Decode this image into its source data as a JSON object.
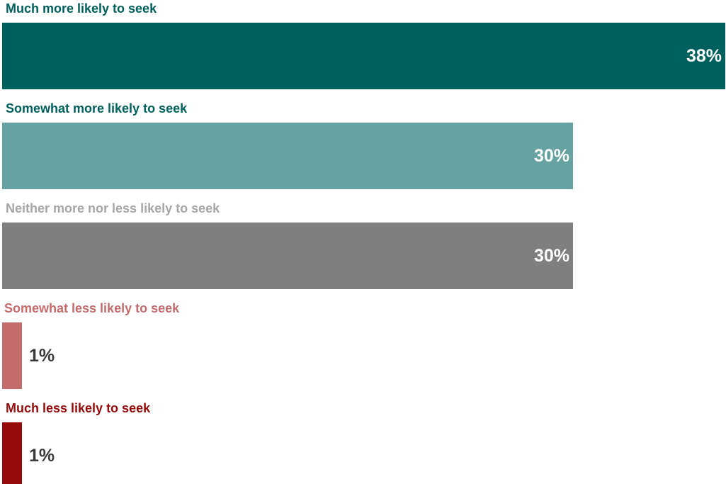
{
  "chart_data": {
    "type": "bar",
    "orientation": "horizontal",
    "title": "",
    "xlabel": "",
    "ylabel": "",
    "xlim": [
      0,
      38
    ],
    "grid": false,
    "legend": "none",
    "categories": [
      "Much more likely to seek",
      "Somewhat more likely to seek",
      "Neither more nor less likely to seek",
      "Somewhat less likely to seek",
      "Much less likely to seek"
    ],
    "values": [
      38,
      30,
      30,
      1,
      1
    ],
    "value_labels": [
      "38%",
      "30%",
      "30%",
      "1%",
      "1%"
    ],
    "colors": [
      "#00605e",
      "#66a2a2",
      "#7f7f7f",
      "#c46b6b",
      "#960a0a"
    ],
    "label_colors": [
      "#00605e",
      "#00605e",
      "#a6a6a6",
      "#c46b6b",
      "#960a0a"
    ]
  }
}
